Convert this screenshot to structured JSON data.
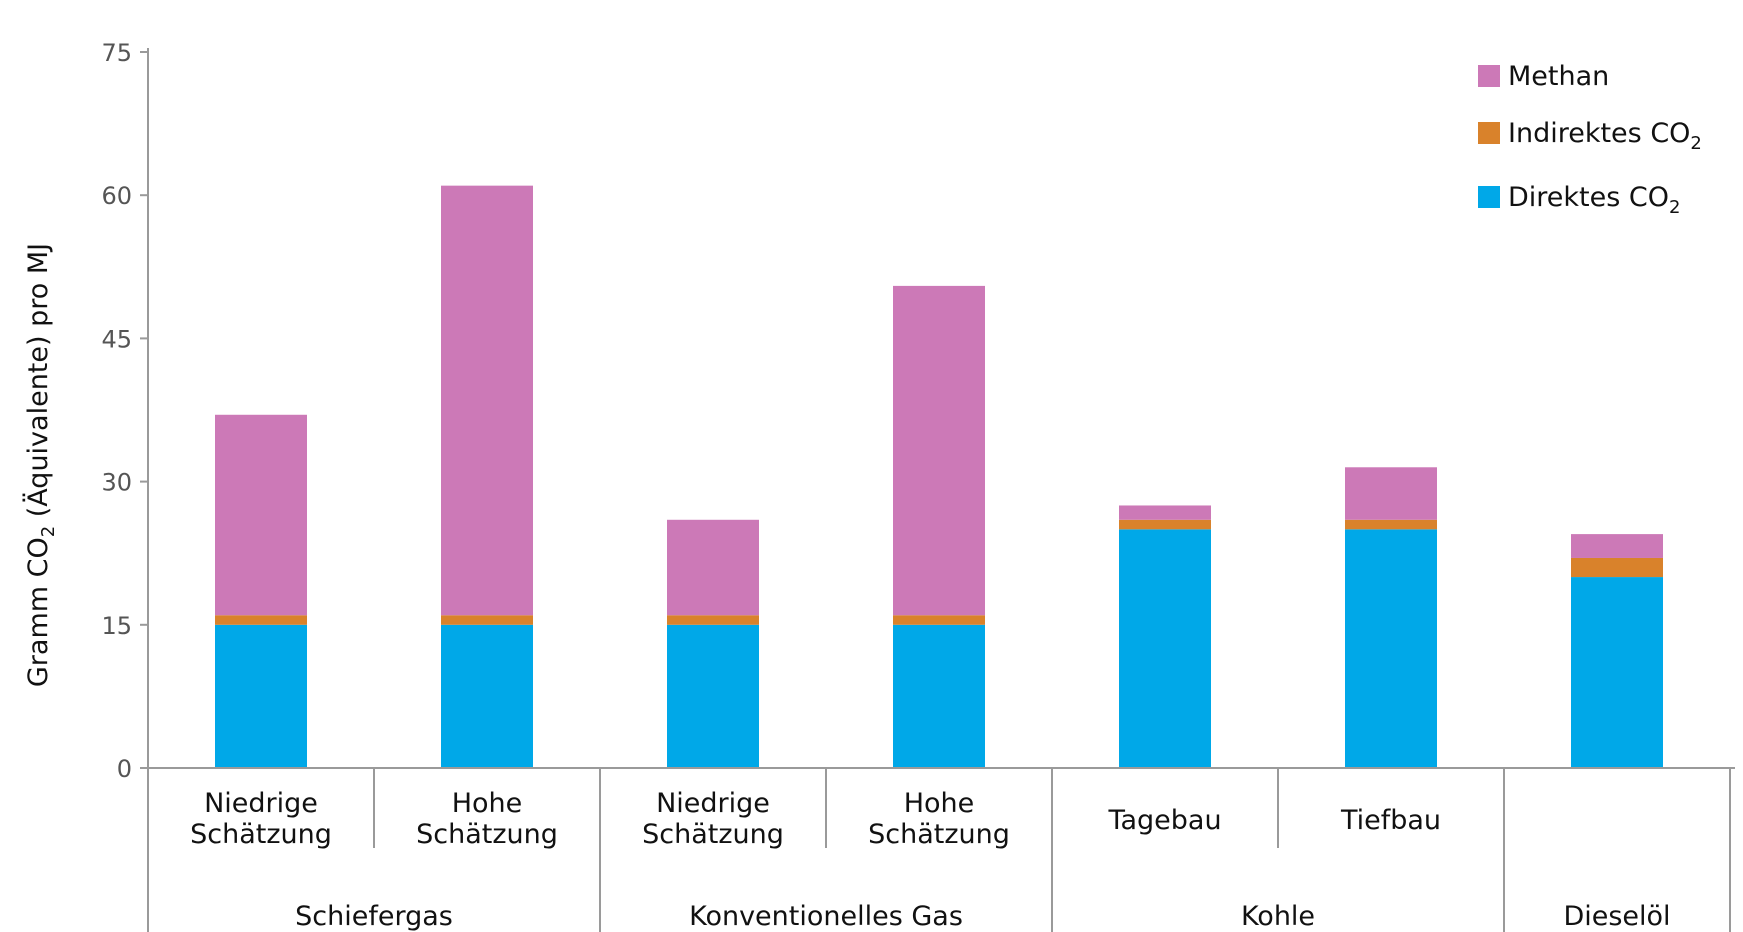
{
  "chart_data": {
    "type": "bar",
    "stacked": true,
    "ylabel_parts": [
      "Gramm CO",
      "2",
      " (Äquivalente) pro MJ"
    ],
    "ylim": [
      0,
      75
    ],
    "yticks": [
      "0",
      "15",
      "30",
      "45",
      "60",
      "75"
    ],
    "grid": false,
    "legend_position": "top-right",
    "categories": [
      {
        "label_lines": [
          "Niedrige",
          "Schätzung"
        ],
        "group": "Schiefergas"
      },
      {
        "label_lines": [
          "Hohe",
          "Schätzung"
        ],
        "group": "Schiefergas"
      },
      {
        "label_lines": [
          "Niedrige",
          "Schätzung"
        ],
        "group": "Konventionelles Gas"
      },
      {
        "label_lines": [
          "Hohe",
          "Schätzung"
        ],
        "group": "Konventionelles Gas"
      },
      {
        "label_lines": [
          "Tagebau"
        ],
        "group": "Kohle"
      },
      {
        "label_lines": [
          "Tiefbau"
        ],
        "group": "Kohle"
      },
      {
        "label_lines": [],
        "group": "Dieselöl"
      }
    ],
    "groups": [
      {
        "name": "Schiefergas",
        "count": 2
      },
      {
        "name": "Konventionelles Gas",
        "count": 2
      },
      {
        "name": "Kohle",
        "count": 2
      },
      {
        "name": "Dieselöl",
        "count": 1
      }
    ],
    "series": [
      {
        "name": "Direktes CO",
        "name_sub": "2",
        "color": "#00A8E8",
        "values": [
          15,
          15,
          15,
          15,
          25,
          25,
          20
        ]
      },
      {
        "name": "Indirektes CO",
        "name_sub": "2",
        "color": "#D9822B",
        "values": [
          1,
          1,
          1,
          1,
          1,
          1,
          2
        ]
      },
      {
        "name": "Methan",
        "name_sub": "",
        "color": "#CC79B7",
        "values": [
          21,
          45,
          10,
          34.5,
          1.5,
          5.5,
          2.5
        ]
      }
    ],
    "legend_order": [
      2,
      1,
      0
    ]
  }
}
